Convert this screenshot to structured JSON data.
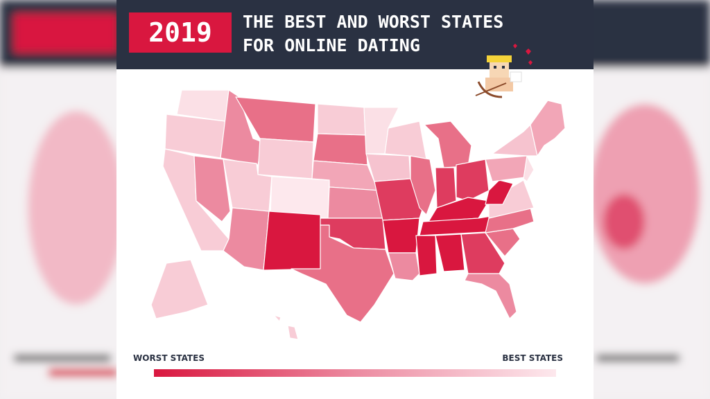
{
  "header": {
    "year": "2019",
    "title_line1": "THE BEST AND WORST STATES",
    "title_line2": "FOR ONLINE DATING"
  },
  "legend": {
    "left": "WORST STATES",
    "right": "BEST STATES"
  }
}
